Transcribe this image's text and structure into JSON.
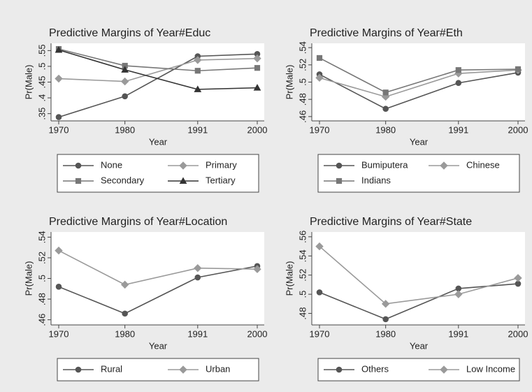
{
  "chart_data": [
    {
      "type": "line",
      "title": "Predictive Margins of Year#Educ",
      "xlabel": "Year",
      "ylabel": "Pr(Male)",
      "x": [
        1970,
        1980,
        1991,
        2000
      ],
      "xlim": [
        1970,
        2000
      ],
      "xticks": [
        1970,
        1980,
        1991,
        2000
      ],
      "ylim": [
        0.327,
        0.573
      ],
      "yticks": [
        {
          "value": 0.35,
          "label": ".35"
        },
        {
          "value": 0.4,
          "label": ".4"
        },
        {
          "value": 0.45,
          "label": ".45"
        },
        {
          "value": 0.5,
          "label": ".5"
        },
        {
          "value": 0.55,
          "label": ".55"
        }
      ],
      "legend": "bottom",
      "series": [
        {
          "name": "None",
          "color": "#555555",
          "marker": "circle",
          "values": [
            0.339,
            0.405,
            0.532,
            0.539
          ]
        },
        {
          "name": "Primary",
          "color": "#9a9a9a",
          "marker": "diamond",
          "values": [
            0.461,
            0.452,
            0.52,
            0.525
          ]
        },
        {
          "name": "Secondary",
          "color": "#777777",
          "marker": "square",
          "values": [
            0.555,
            0.502,
            0.486,
            0.495
          ]
        },
        {
          "name": "Tertiary",
          "color": "#333333",
          "marker": "triangle",
          "values": [
            0.552,
            0.489,
            0.427,
            0.432
          ]
        }
      ]
    },
    {
      "type": "line",
      "title": "Predictive Margins of Year#Eth",
      "xlabel": "Year",
      "ylabel": "Pr(Male)",
      "x": [
        1970,
        1980,
        1991,
        2000
      ],
      "xlim": [
        1970,
        2000
      ],
      "xticks": [
        1970,
        1980,
        1991,
        2000
      ],
      "ylim": [
        0.455,
        0.545
      ],
      "yticks": [
        {
          "value": 0.46,
          "label": ".46"
        },
        {
          "value": 0.48,
          "label": ".48"
        },
        {
          "value": 0.5,
          "label": ".5"
        },
        {
          "value": 0.52,
          "label": ".52"
        },
        {
          "value": 0.54,
          "label": ".54"
        }
      ],
      "legend": "bottom",
      "series": [
        {
          "name": "Bumiputera",
          "color": "#555555",
          "marker": "circle",
          "values": [
            0.509,
            0.469,
            0.499,
            0.511
          ]
        },
        {
          "name": "Chinese",
          "color": "#9a9a9a",
          "marker": "diamond",
          "values": [
            0.505,
            0.483,
            0.51,
            0.514
          ]
        },
        {
          "name": "Indians",
          "color": "#777777",
          "marker": "square",
          "values": [
            0.528,
            0.488,
            0.514,
            0.515
          ]
        }
      ]
    },
    {
      "type": "line",
      "title": "Predictive Margins of Year#Location",
      "xlabel": "Year",
      "ylabel": "Pr(Male)",
      "x": [
        1970,
        1980,
        1991,
        2000
      ],
      "xlim": [
        1970,
        2000
      ],
      "xticks": [
        1970,
        1980,
        1991,
        2000
      ],
      "ylim": [
        0.455,
        0.545
      ],
      "yticks": [
        {
          "value": 0.46,
          "label": ".46"
        },
        {
          "value": 0.48,
          "label": ".48"
        },
        {
          "value": 0.5,
          "label": ".5"
        },
        {
          "value": 0.52,
          "label": ".52"
        },
        {
          "value": 0.54,
          "label": ".54"
        }
      ],
      "legend": "bottom",
      "series": [
        {
          "name": "Rural",
          "color": "#555555",
          "marker": "circle",
          "values": [
            0.492,
            0.466,
            0.501,
            0.512
          ]
        },
        {
          "name": "Urban",
          "color": "#9a9a9a",
          "marker": "diamond",
          "values": [
            0.527,
            0.494,
            0.51,
            0.509
          ]
        }
      ]
    },
    {
      "type": "line",
      "title": "Predictive Margins of Year#State",
      "xlabel": "Year",
      "ylabel": "Pr(Male)",
      "x": [
        1970,
        1980,
        1991,
        2000
      ],
      "xlim": [
        1970,
        2000
      ],
      "xticks": [
        1970,
        1980,
        1991,
        2000
      ],
      "ylim": [
        0.468,
        0.565
      ],
      "yticks": [
        {
          "value": 0.48,
          "label": ".48"
        },
        {
          "value": 0.5,
          "label": ".5"
        },
        {
          "value": 0.52,
          "label": ".52"
        },
        {
          "value": 0.54,
          "label": ".54"
        },
        {
          "value": 0.56,
          "label": ".56"
        }
      ],
      "legend": "bottom",
      "series": [
        {
          "name": "Others",
          "color": "#555555",
          "marker": "circle",
          "values": [
            0.502,
            0.474,
            0.506,
            0.511
          ]
        },
        {
          "name": "Low Income",
          "color": "#9a9a9a",
          "marker": "diamond",
          "values": [
            0.55,
            0.49,
            0.5,
            0.517
          ]
        }
      ]
    }
  ]
}
